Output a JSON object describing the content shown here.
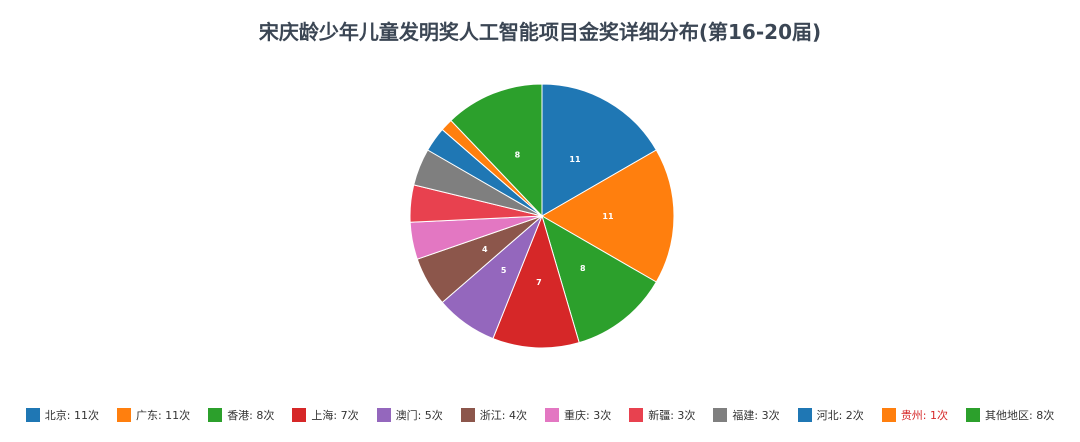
{
  "chart_data": {
    "type": "pie",
    "title": "宋庆龄少年儿童发明奖人工智能项目金奖详细分布(第16-20届)",
    "slices": [
      {
        "label": "北京",
        "value": 11,
        "legend": "北京: 11次",
        "color": "#1f77b4",
        "show_value": true
      },
      {
        "label": "广东",
        "value": 11,
        "legend": "广东: 11次",
        "color": "#ff7f0e",
        "show_value": true
      },
      {
        "label": "香港",
        "value": 8,
        "legend": "香港: 8次",
        "color": "#2ca02c",
        "show_value": true
      },
      {
        "label": "上海",
        "value": 7,
        "legend": "上海: 7次",
        "color": "#d62728",
        "show_value": true
      },
      {
        "label": "澳门",
        "value": 5,
        "legend": "澳门: 5次",
        "color": "#9467bd",
        "show_value": true
      },
      {
        "label": "浙江",
        "value": 4,
        "legend": "浙江: 4次",
        "color": "#8c564b",
        "show_value": true
      },
      {
        "label": "重庆",
        "value": 3,
        "legend": "重庆: 3次",
        "color": "#e377c2",
        "show_value": false
      },
      {
        "label": "新疆",
        "value": 3,
        "legend": "新疆: 3次",
        "color": "#e8414f",
        "show_value": false
      },
      {
        "label": "福建",
        "value": 3,
        "legend": "福建: 3次",
        "color": "#7f7f7f",
        "show_value": false
      },
      {
        "label": "河北",
        "value": 2,
        "legend": "河北: 2次",
        "color": "#1f77b4",
        "show_value": false
      },
      {
        "label": "贵州",
        "value": 1,
        "legend": "贵州: 1次",
        "color": "#ff7f0e",
        "show_value": false,
        "legend_highlight": true
      },
      {
        "label": "其他地区",
        "value": 8,
        "legend": "其他地区: 8次",
        "color": "#2ca02c",
        "show_value": true
      }
    ],
    "start_angle": "12 o'clock",
    "direction": "clockwise",
    "legend_placement": "bottom"
  }
}
